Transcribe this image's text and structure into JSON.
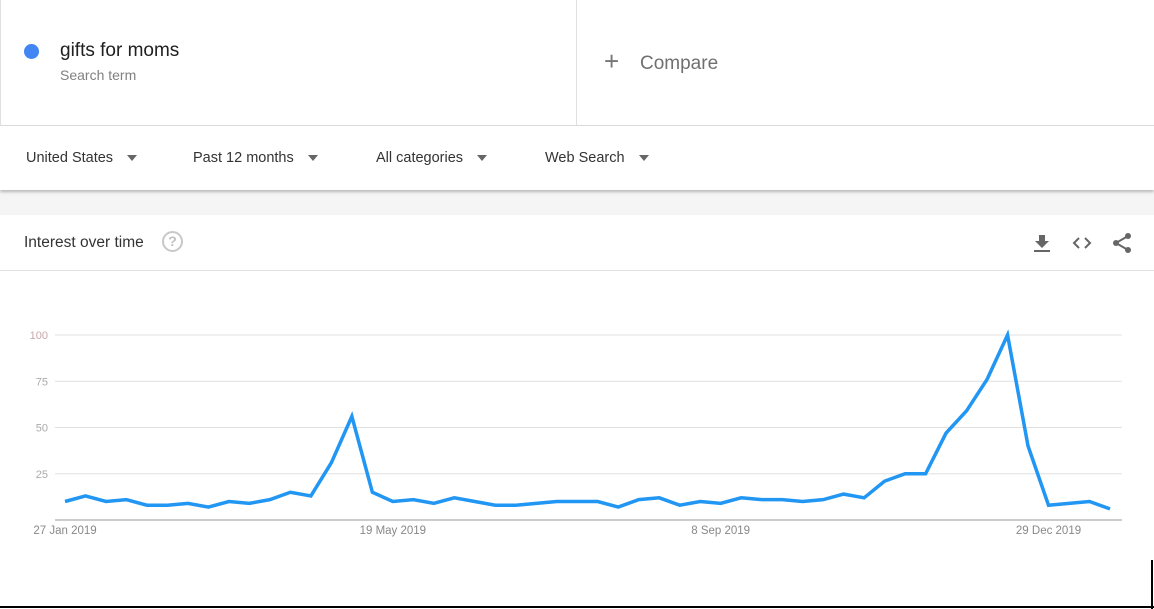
{
  "search": {
    "term": "gifts for moms",
    "term_sublabel": "Search term",
    "term_color": "#4285f4",
    "compare_label": "Compare",
    "compare_icon": "plus-icon"
  },
  "filters": [
    {
      "label": "United States"
    },
    {
      "label": "Past 12 months"
    },
    {
      "label": "All categories"
    },
    {
      "label": "Web Search"
    }
  ],
  "card": {
    "title": "Interest over time",
    "help_icon": "question-circle-icon",
    "help_glyph": "?",
    "actions": [
      "download-icon",
      "embed-code-icon",
      "share-icon"
    ]
  },
  "chart_data": {
    "type": "line",
    "title": "",
    "xlabel": "",
    "ylabel": "",
    "ylim": [
      0,
      100
    ],
    "y_ticks": [
      "25",
      "50",
      "75",
      "100"
    ],
    "x_tick_labels": [
      "27 Jan 2019",
      "19 May 2019",
      "8 Sep 2019",
      "29 Dec 2019"
    ],
    "grid": true,
    "line_color": "#2196f3",
    "x": [
      "2019-01-27",
      "2019-02-03",
      "2019-02-10",
      "2019-02-17",
      "2019-02-24",
      "2019-03-03",
      "2019-03-10",
      "2019-03-17",
      "2019-03-24",
      "2019-03-31",
      "2019-04-07",
      "2019-04-14",
      "2019-04-21",
      "2019-04-28",
      "2019-05-05",
      "2019-05-12",
      "2019-05-19",
      "2019-05-26",
      "2019-06-02",
      "2019-06-09",
      "2019-06-16",
      "2019-06-23",
      "2019-06-30",
      "2019-07-07",
      "2019-07-14",
      "2019-07-21",
      "2019-07-28",
      "2019-08-04",
      "2019-08-11",
      "2019-08-18",
      "2019-08-25",
      "2019-09-01",
      "2019-09-08",
      "2019-09-15",
      "2019-09-22",
      "2019-09-29",
      "2019-10-06",
      "2019-10-13",
      "2019-10-20",
      "2019-10-27",
      "2019-11-03",
      "2019-11-10",
      "2019-11-17",
      "2019-11-24",
      "2019-12-01",
      "2019-12-08",
      "2019-12-15",
      "2019-12-22",
      "2019-12-29",
      "2020-01-05",
      "2020-01-12",
      "2020-01-19"
    ],
    "series": [
      {
        "values": [
          10,
          13,
          10,
          11,
          8,
          8,
          9,
          7,
          10,
          9,
          11,
          15,
          13,
          31,
          56,
          15,
          10,
          11,
          9,
          12,
          10,
          8,
          8,
          9,
          10,
          10,
          10,
          7,
          11,
          12,
          8,
          10,
          9,
          12,
          11,
          11,
          10,
          11,
          14,
          12,
          21,
          25,
          25,
          47,
          59,
          76,
          100,
          40,
          8,
          9,
          10,
          6
        ]
      }
    ]
  }
}
